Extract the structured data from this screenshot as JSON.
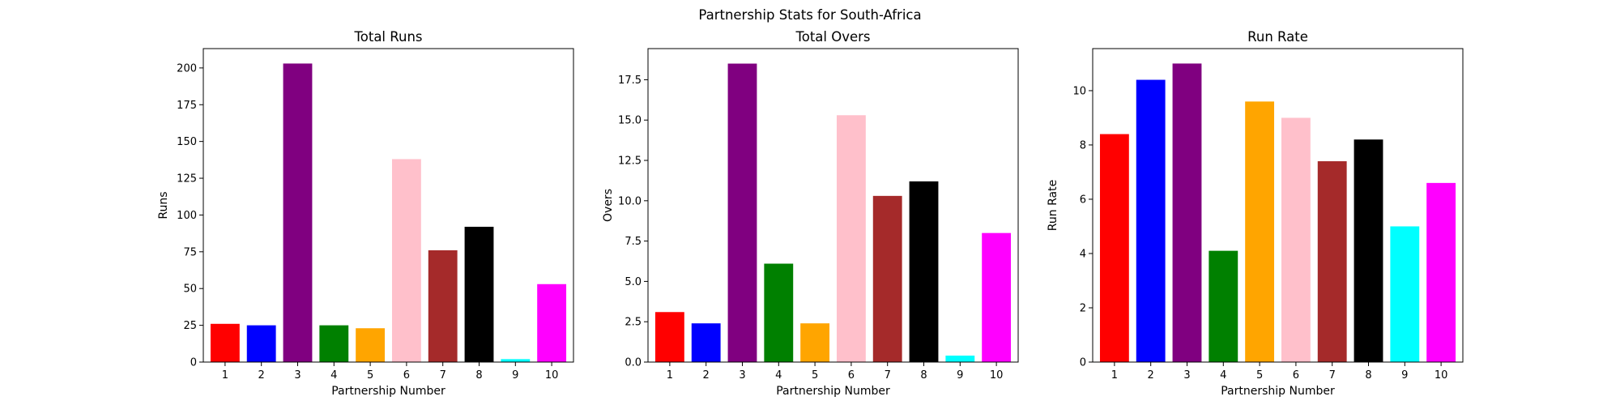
{
  "figure": {
    "suptitle": "Partnership Stats for South-Africa"
  },
  "chart_data": [
    {
      "type": "bar",
      "title": "Total Runs",
      "xlabel": "Partnership Number",
      "ylabel": "Runs",
      "categories": [
        "1",
        "2",
        "3",
        "4",
        "5",
        "6",
        "7",
        "8",
        "9",
        "10"
      ],
      "values": [
        26,
        25,
        203,
        25,
        23,
        138,
        76,
        92,
        2,
        53
      ],
      "colors": [
        "#ff0000",
        "#0000ff",
        "#800080",
        "#008000",
        "#ffa500",
        "#ffc0cb",
        "#a52a2a",
        "#000000",
        "#00ffff",
        "#ff00ff"
      ],
      "ylim": [
        0,
        213.15
      ],
      "yticks": [
        0,
        25,
        50,
        75,
        100,
        125,
        150,
        175,
        200
      ],
      "ytick_labels": [
        "0",
        "25",
        "50",
        "75",
        "100",
        "125",
        "150",
        "175",
        "200"
      ],
      "grid": false,
      "legend": "none"
    },
    {
      "type": "bar",
      "title": "Total Overs",
      "xlabel": "Partnership Number",
      "ylabel": "Overs",
      "categories": [
        "1",
        "2",
        "3",
        "4",
        "5",
        "6",
        "7",
        "8",
        "9",
        "10"
      ],
      "values": [
        3.1,
        2.4,
        18.5,
        6.1,
        2.4,
        15.3,
        10.3,
        11.2,
        0.4,
        8.0
      ],
      "colors": [
        "#ff0000",
        "#0000ff",
        "#800080",
        "#008000",
        "#ffa500",
        "#ffc0cb",
        "#a52a2a",
        "#000000",
        "#00ffff",
        "#ff00ff"
      ],
      "ylim": [
        0,
        19.43
      ],
      "yticks": [
        0,
        2.5,
        5,
        7.5,
        10,
        12.5,
        15,
        17.5
      ],
      "ytick_labels": [
        "0.0",
        "2.5",
        "5.0",
        "7.5",
        "10.0",
        "12.5",
        "15.0",
        "17.5"
      ],
      "grid": false,
      "legend": "none"
    },
    {
      "type": "bar",
      "title": "Run Rate",
      "xlabel": "Partnership Number",
      "ylabel": "Run Rate",
      "categories": [
        "1",
        "2",
        "3",
        "4",
        "5",
        "6",
        "7",
        "8",
        "9",
        "10"
      ],
      "values": [
        8.4,
        10.4,
        11.0,
        4.1,
        9.6,
        9.0,
        7.4,
        8.2,
        5.0,
        6.6
      ],
      "colors": [
        "#ff0000",
        "#0000ff",
        "#800080",
        "#008000",
        "#ffa500",
        "#ffc0cb",
        "#a52a2a",
        "#000000",
        "#00ffff",
        "#ff00ff"
      ],
      "ylim": [
        0,
        11.55
      ],
      "yticks": [
        0,
        2,
        4,
        6,
        8,
        10
      ],
      "ytick_labels": [
        "0",
        "2",
        "4",
        "6",
        "8",
        "10"
      ],
      "grid": false,
      "legend": "none"
    }
  ]
}
